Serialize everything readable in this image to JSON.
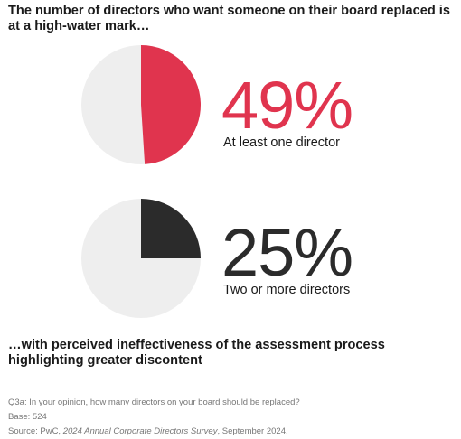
{
  "headline": "The number of directors who want someone on their board replaced is at a high-water mark…",
  "subheadline": "…with perceived ineffectiveness of the assessment process highlighting greater discontent",
  "chart_data": {
    "type": "pie",
    "charts": [
      {
        "value": 49,
        "value_label": "49%",
        "label": "At least one director",
        "color": "#e0344e",
        "remainder_color": "#eeeeee"
      },
      {
        "value": 25,
        "value_label": "25%",
        "label": "Two or more directors",
        "color": "#2b2b2b",
        "remainder_color": "#eeeeee"
      }
    ]
  },
  "footnotes": {
    "question": "Q3a: In your opinion, how many directors on your board should be replaced?",
    "base": "Base: 524",
    "source_prefix": "Source: PwC, ",
    "source_title": "2024 Annual Corporate Directors Survey",
    "source_suffix": ", September 2024."
  }
}
